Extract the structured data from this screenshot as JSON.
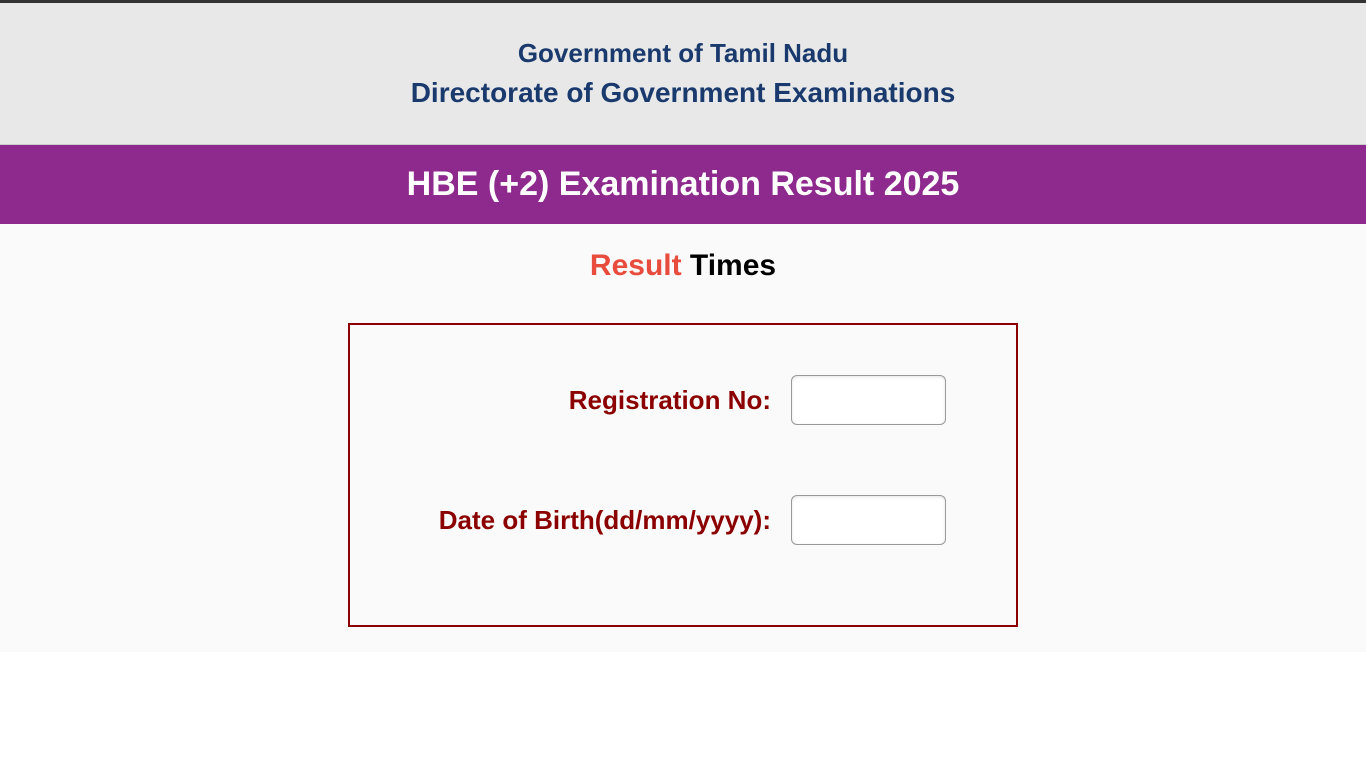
{
  "header": {
    "line1": "Government of Tamil Nadu",
    "line2": "Directorate of Government Examinations"
  },
  "banner": {
    "text": "HBE (+2) Examination Result 2025"
  },
  "brand": {
    "word1": "Result",
    "word2": " Times"
  },
  "form": {
    "registration": {
      "label": "Registration No:",
      "value": ""
    },
    "dob": {
      "label": "Date of Birth(dd/mm/yyyy):",
      "value": ""
    }
  },
  "colors": {
    "header_bg": "#e8e8e8",
    "header_text": "#1a3a6e",
    "banner_bg": "#8e2a8e",
    "banner_text": "#ffffff",
    "form_border": "#8b0000",
    "form_label": "#8b0000",
    "result_word": "#e74c3c",
    "times_word": "#000000",
    "content_bg": "#fafafa"
  }
}
